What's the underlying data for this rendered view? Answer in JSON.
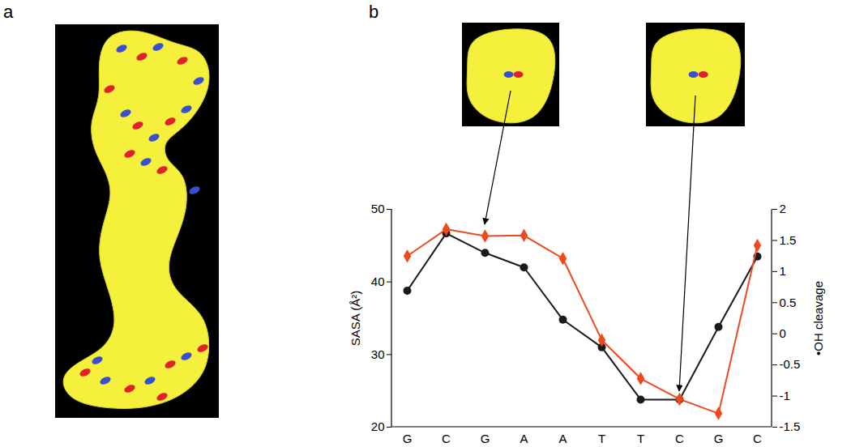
{
  "chart_data": {
    "type": "line",
    "panel_labels": [
      "a",
      "b"
    ],
    "categories": [
      "G",
      "C",
      "G",
      "A",
      "A",
      "T",
      "T",
      "C",
      "G",
      "C"
    ],
    "ylim": [
      20,
      50
    ],
    "yticks": [
      20,
      30,
      40,
      50
    ],
    "y2lim": [
      -1.5,
      2
    ],
    "y2ticks": [
      -1.5,
      -1,
      -0.5,
      0,
      0.5,
      1,
      1.5,
      2
    ],
    "grid": false,
    "series": [
      {
        "name": "SASA (Å²)",
        "color": "#1a1a1a",
        "marker": "circle",
        "values": [
          38.8,
          46.7,
          44.0,
          42.0,
          34.8,
          31.0,
          23.8,
          23.8,
          33.8,
          43.5
        ]
      },
      {
        "name": "•OH cleavage",
        "color": "#ec4a1f",
        "marker": "diamond",
        "axis": "y2",
        "values": [
          1.25,
          1.68,
          1.57,
          1.58,
          1.21,
          -0.1,
          -0.72,
          -1.05,
          -1.28,
          1.42
        ]
      }
    ]
  }
}
